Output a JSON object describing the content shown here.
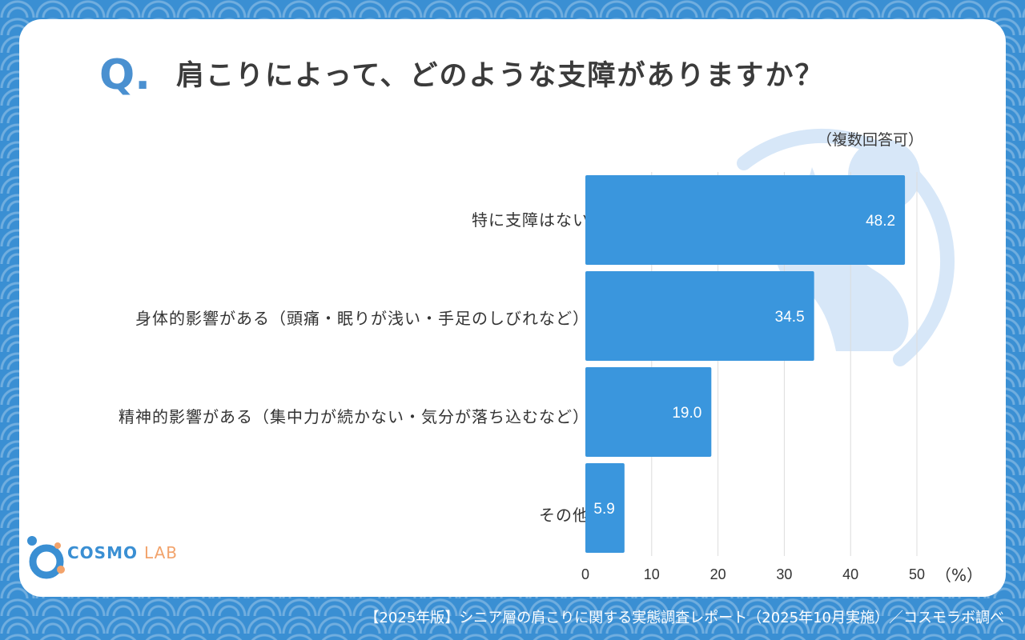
{
  "header": {
    "q_mark": "Q.",
    "title": "肩こりによって、どのような支障がありますか？",
    "note": "（複数回答可）"
  },
  "chart_data": {
    "type": "bar",
    "orientation": "horizontal",
    "categories": [
      "特に支障はない",
      "身体的影響がある（頭痛・眠りが浅い・手足のしびれなど）",
      "精神的影響がある（集中力が続かない・気分が落ち込むなど）",
      "その他"
    ],
    "values": [
      48.2,
      34.5,
      19.0,
      5.9
    ],
    "value_labels": [
      "48.2",
      "34.5",
      "19.0",
      "5.9"
    ],
    "xlim": [
      0,
      50
    ],
    "ticks": [
      0,
      10,
      20,
      30,
      40,
      50
    ],
    "tick_labels": [
      "0",
      "10",
      "20",
      "30",
      "40",
      "50"
    ],
    "unit_label": "（%）",
    "grid": true,
    "bar_color": "#3a96dd"
  },
  "logo": {
    "main": "COSMO",
    "sub": "LAB"
  },
  "footer": {
    "source": "【2025年版】シニア層の肩こりに関する実態調査レポート（2025年10月実施）／コスモラボ調べ"
  }
}
